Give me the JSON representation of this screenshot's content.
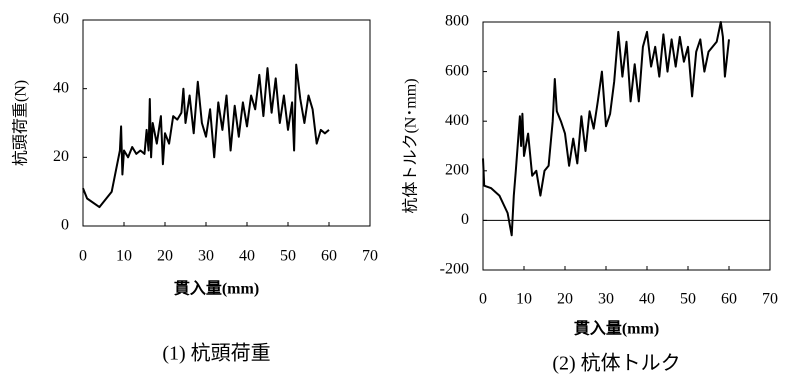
{
  "chart_data": [
    {
      "type": "line",
      "caption": "(1) 杭頭荷重",
      "xlabel": "貫入量(mm)",
      "ylabel": "杭頭荷重(N)",
      "color": "#000000",
      "xlim": [
        0,
        70
      ],
      "xticks": [
        0,
        10,
        20,
        30,
        40,
        50,
        60,
        70
      ],
      "ylim": [
        0,
        60
      ],
      "yticks": [
        0,
        20,
        40,
        60
      ],
      "zero_line": false,
      "x": [
        0,
        1,
        4,
        7,
        8,
        9,
        9.3,
        9.6,
        10,
        11,
        12,
        13,
        14,
        15,
        15.5,
        16,
        16.3,
        16.6,
        17,
        18,
        19,
        19.5,
        20,
        21,
        22,
        23,
        24,
        24.5,
        25,
        26,
        27,
        28,
        29,
        30,
        31,
        32,
        33,
        34,
        35,
        36,
        37,
        38,
        39,
        40,
        41,
        42,
        43,
        44,
        45,
        46,
        47,
        48,
        49,
        50,
        51,
        51.5,
        52,
        53,
        54,
        55,
        56,
        57,
        58,
        59,
        60
      ],
      "values": [
        11,
        8,
        5.5,
        10,
        16,
        22,
        29,
        15,
        22,
        20,
        23,
        21,
        22,
        21,
        28,
        22,
        37,
        20,
        30,
        24,
        32,
        18,
        27,
        24,
        32,
        31,
        33,
        40,
        30,
        38,
        27,
        42,
        30,
        26,
        34,
        20,
        36,
        28,
        38,
        22,
        35,
        26,
        36,
        29,
        38,
        34,
        44,
        32,
        46,
        33,
        43,
        30,
        38,
        28,
        36,
        22,
        47,
        37,
        30,
        38,
        34,
        24,
        28,
        27,
        28
      ]
    },
    {
      "type": "line",
      "caption": "(2) 杭体トルク",
      "xlabel": "貫入量(mm)",
      "ylabel": "杭体トルク(N･mm)",
      "color": "#000000",
      "xlim": [
        0,
        70
      ],
      "xticks": [
        0,
        10,
        20,
        30,
        40,
        50,
        60,
        70
      ],
      "ylim": [
        -200,
        800
      ],
      "yticks": [
        -200,
        0,
        200,
        400,
        600,
        800
      ],
      "zero_line": true,
      "x": [
        0,
        0.3,
        2,
        4,
        6,
        7,
        7.5,
        8,
        9,
        9.3,
        9.6,
        10,
        11,
        12,
        13,
        14,
        15,
        16,
        17,
        17.5,
        18,
        19,
        20,
        21,
        22,
        23,
        24,
        25,
        26,
        27,
        28,
        29,
        30,
        31,
        32,
        33,
        34,
        35,
        36,
        37,
        38,
        39,
        40,
        41,
        42,
        43,
        44,
        45,
        46,
        47,
        48,
        49,
        50,
        51,
        52,
        53,
        54,
        55,
        56,
        57,
        58,
        58.5,
        59,
        60
      ],
      "values": [
        250,
        140,
        130,
        100,
        30,
        -60,
        100,
        200,
        420,
        300,
        430,
        260,
        350,
        180,
        200,
        100,
        200,
        220,
        400,
        570,
        440,
        400,
        350,
        220,
        330,
        230,
        420,
        280,
        440,
        370,
        480,
        600,
        380,
        430,
        560,
        760,
        580,
        720,
        480,
        630,
        480,
        700,
        760,
        620,
        700,
        580,
        750,
        600,
        730,
        620,
        740,
        640,
        700,
        500,
        680,
        730,
        600,
        680,
        700,
        720,
        800,
        740,
        580,
        730
      ]
    }
  ]
}
